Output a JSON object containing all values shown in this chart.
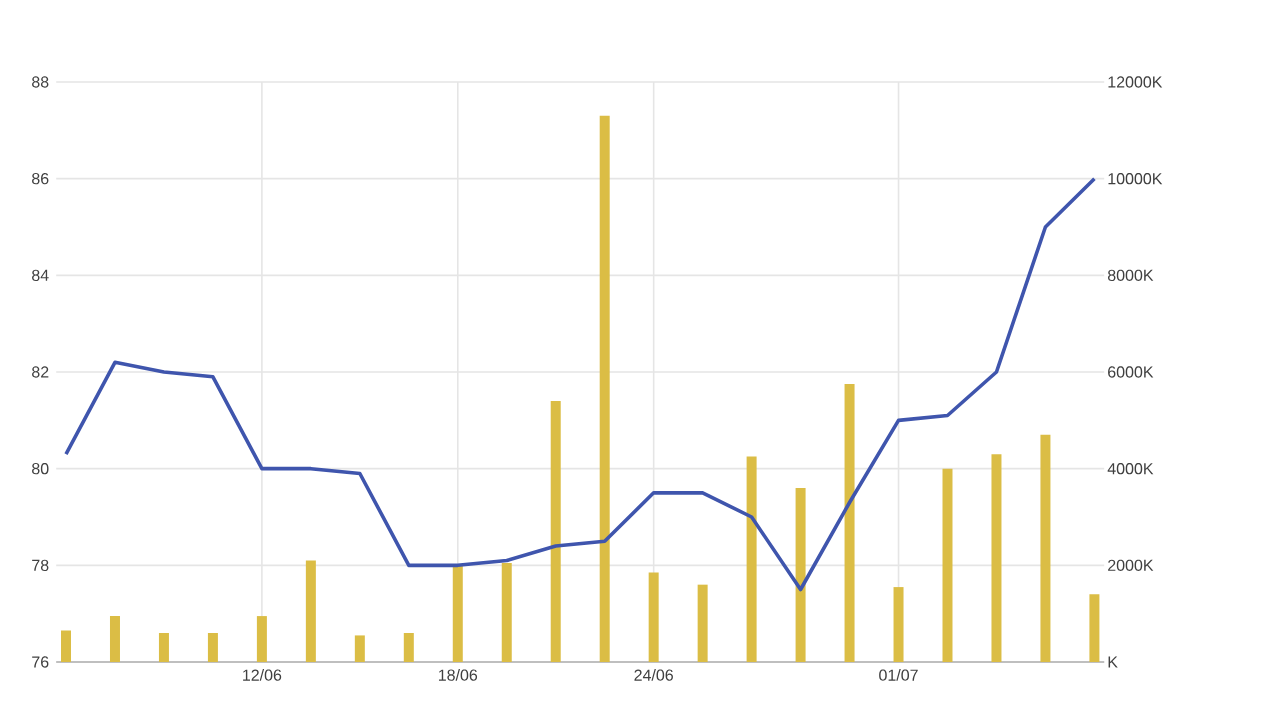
{
  "chart_data": {
    "type": "line",
    "categories": [
      null,
      null,
      null,
      null,
      "12/06",
      null,
      null,
      null,
      "18/06",
      null,
      null,
      null,
      "24/06",
      null,
      null,
      null,
      null,
      "01/07",
      null,
      null,
      null,
      null
    ],
    "series": [
      {
        "color": "#3f55ad",
        "values": [
          80.3,
          82.2,
          82.0,
          81.9,
          80.0,
          80.0,
          79.9,
          78.0,
          78.0,
          78.1,
          78.4,
          78.5,
          79.5,
          79.5,
          79.0,
          77.5,
          79.3,
          81.0,
          81.1,
          82.0,
          85.0,
          86.0
        ]
      },
      {
        "type": "bar",
        "axis": "y2",
        "color": "#dbbd45",
        "values": [
          650,
          950,
          600,
          600,
          950,
          2100,
          550,
          600,
          2000,
          2050,
          5400,
          11300,
          1850,
          1600,
          4250,
          3600,
          5750,
          1550,
          4000,
          4300,
          4700,
          1400
        ]
      }
    ],
    "ylim": [
      76,
      88
    ],
    "yticks": [
      76,
      78,
      80,
      82,
      84,
      86,
      88
    ],
    "y2lim": [
      0,
      12000
    ],
    "y2ticks": [
      {
        "value": 0,
        "label": "K"
      },
      {
        "value": 2000,
        "label": "2000K"
      },
      {
        "value": 4000,
        "label": "4000K"
      },
      {
        "value": 6000,
        "label": "6000K"
      },
      {
        "value": 8000,
        "label": "8000K"
      },
      {
        "value": 10000,
        "label": "10000K"
      },
      {
        "value": 12000,
        "label": "12000K"
      }
    ],
    "grid": true,
    "marker": "none",
    "line_style": "solid"
  }
}
